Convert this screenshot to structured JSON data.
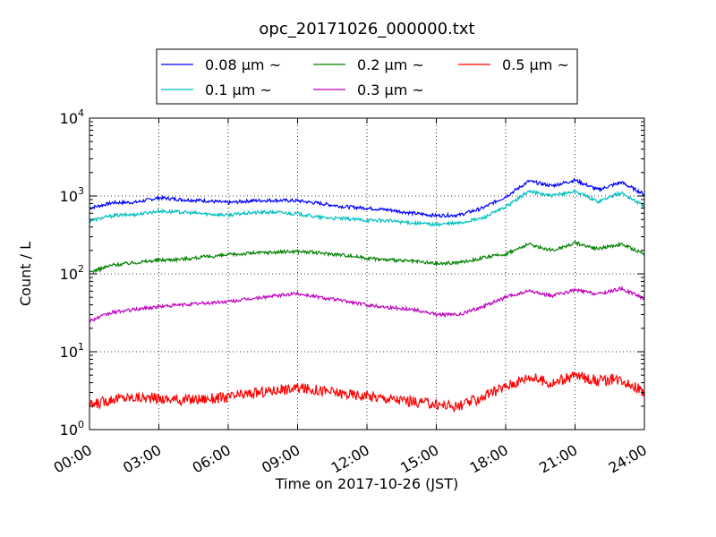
{
  "chart_data": {
    "type": "line",
    "title": "opc_20171026_000000.txt",
    "xlabel": "Time on 2017-10-26 (JST)",
    "ylabel": "Count / L",
    "x_range": [
      "2017-10-26 00:00",
      "2017-10-27 00:00"
    ],
    "x_ticks": [
      "00:00",
      "03:00",
      "06:00",
      "09:00",
      "12:00",
      "15:00",
      "18:00",
      "21:00",
      "24:00"
    ],
    "y_scale": "log",
    "ylim": [
      1,
      10000
    ],
    "y_ticks": [
      {
        "base": "10",
        "exp": "0"
      },
      {
        "base": "10",
        "exp": "1"
      },
      {
        "base": "10",
        "exp": "2"
      },
      {
        "base": "10",
        "exp": "3"
      },
      {
        "base": "10",
        "exp": "4"
      }
    ],
    "grid": true,
    "legend_position": "top-center",
    "x_hours": [
      0,
      1,
      2,
      3,
      4,
      5,
      6,
      7,
      8,
      9,
      10,
      11,
      12,
      13,
      14,
      15,
      16,
      17,
      18,
      19,
      20,
      21,
      22,
      23,
      24
    ],
    "series": [
      {
        "name": "0.08 μm ~",
        "color": "#0000ff",
        "values": [
          700,
          820,
          830,
          950,
          900,
          870,
          820,
          870,
          880,
          870,
          800,
          730,
          700,
          660,
          600,
          560,
          570,
          700,
          980,
          1550,
          1350,
          1600,
          1200,
          1500,
          1050
        ]
      },
      {
        "name": "0.1 μm ~",
        "color": "#00bfbf",
        "values": [
          480,
          560,
          580,
          640,
          620,
          590,
          570,
          610,
          620,
          590,
          530,
          510,
          490,
          480,
          450,
          430,
          450,
          520,
          720,
          1150,
          1000,
          1150,
          850,
          1100,
          740
        ]
      },
      {
        "name": "0.2 μm ~",
        "color": "#008000",
        "values": [
          105,
          130,
          140,
          150,
          155,
          165,
          175,
          185,
          190,
          195,
          185,
          175,
          160,
          150,
          145,
          135,
          140,
          160,
          180,
          240,
          200,
          250,
          210,
          240,
          180
        ]
      },
      {
        "name": "0.3 μm ~",
        "color": "#bf00bf",
        "values": [
          25,
          32,
          35,
          38,
          40,
          42,
          44,
          48,
          52,
          56,
          50,
          45,
          40,
          37,
          35,
          30,
          30,
          38,
          50,
          60,
          52,
          62,
          55,
          65,
          48
        ]
      },
      {
        "name": "0.5 μm ~",
        "color": "#ff0000",
        "values": [
          2.0,
          2.5,
          2.6,
          2.5,
          2.4,
          2.5,
          2.6,
          2.9,
          3.2,
          3.4,
          3.2,
          2.9,
          2.7,
          2.5,
          2.3,
          2.1,
          2.0,
          2.6,
          3.6,
          4.8,
          3.9,
          5.0,
          4.2,
          4.5,
          3.0
        ]
      }
    ]
  }
}
